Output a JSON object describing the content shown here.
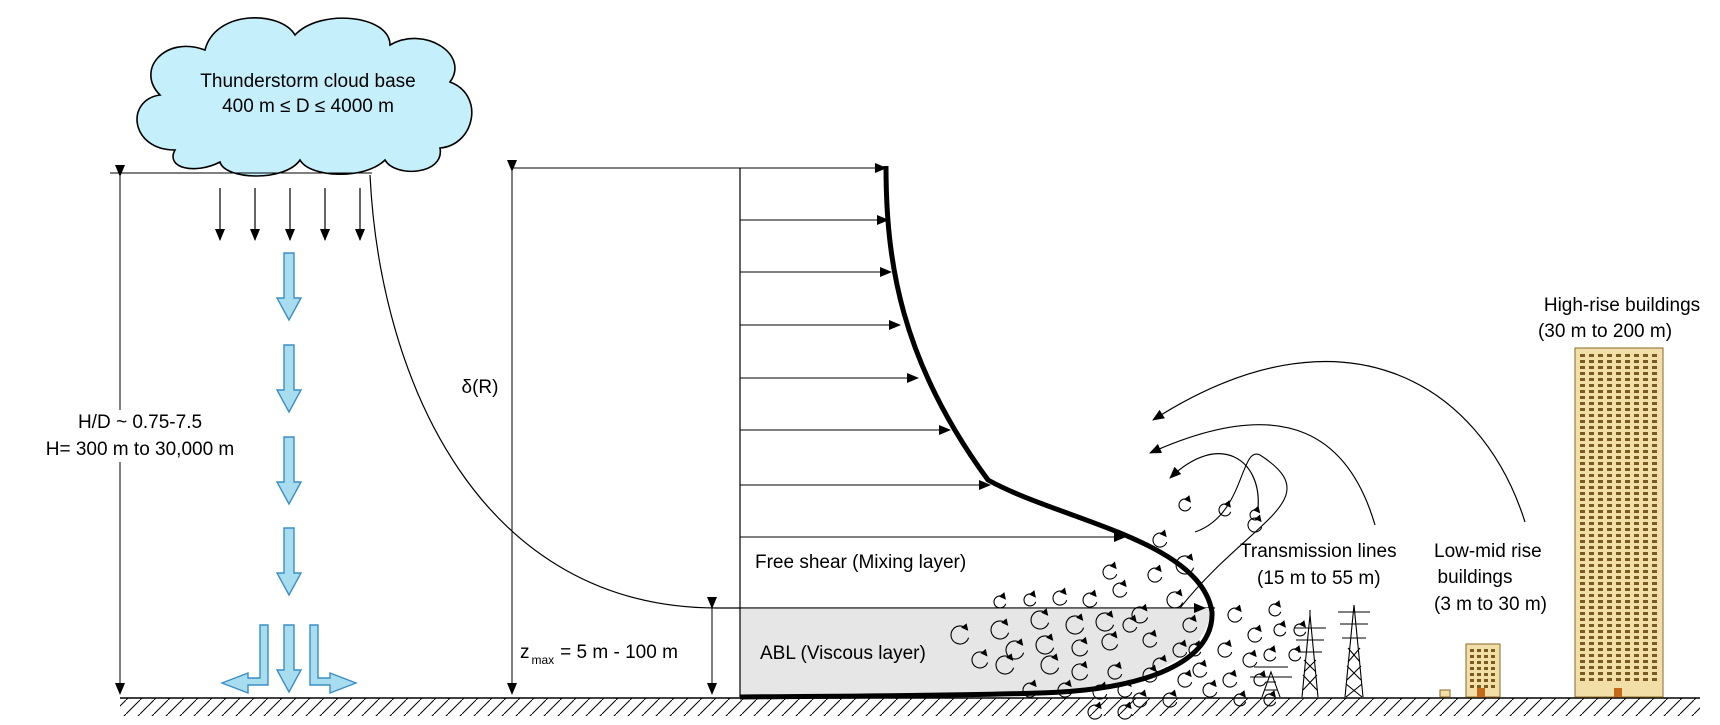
{
  "cloud": {
    "title": "Thunderstorm cloud base",
    "range": "400 m ≤ D ≤ 4000 m"
  },
  "height": {
    "ratio": "H/D ~ 0.75-7.5",
    "range": "H= 300 m to 30,000 m"
  },
  "profile": {
    "delta": "δ(R)",
    "zmax_z": "z",
    "zmax_sub": "max",
    "zmax_value": "= 5 m - 100 m",
    "free_shear": "Free shear (Mixing layer)",
    "abl": "ABL (Viscous layer)"
  },
  "structures": {
    "transmission_title": "Transmission lines",
    "transmission_range": "(15 m to 55 m)",
    "lowmid_title_1": "Low-mid rise",
    "lowmid_title_2": "buildings",
    "lowmid_range": "(3 m to 30 m)",
    "highrise_title": "High-rise buildings",
    "highrise_range": "(30 m to 200 m)"
  },
  "colors": {
    "downdraft_fill": "#a8dcef",
    "downdraft_stroke": "#3b8fc4",
    "abl_fill": "#e6e6e6",
    "building_fill": "#f2dfa8",
    "building_stroke": "#8a6a2a"
  }
}
